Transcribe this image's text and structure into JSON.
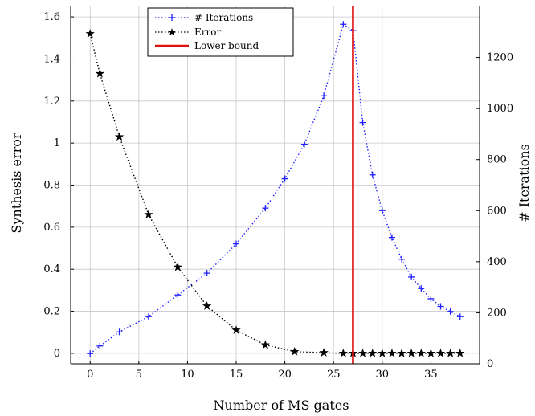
{
  "chart_data": {
    "type": "line",
    "xlabel": "Number of MS gates",
    "ylabel_left": "Synthesis error",
    "ylabel_right": "# Iterations",
    "xlim": [
      -2,
      40
    ],
    "ylim_left": [
      -0.05,
      1.65
    ],
    "ylim_right": [
      0,
      1400
    ],
    "xticks": [
      0,
      5,
      10,
      15,
      20,
      25,
      30,
      35
    ],
    "yticks_left": [
      0,
      0.2,
      0.4,
      0.6,
      0.8,
      1,
      1.2,
      1.4,
      1.6
    ],
    "yticks_left_labels": [
      "0",
      "0.2",
      "0.4",
      "0.6",
      "0.8",
      "1",
      "1.2",
      "1.4",
      "1.6"
    ],
    "yticks_right": [
      0,
      200,
      400,
      600,
      800,
      1000,
      1200
    ],
    "grid": true,
    "legend_position": "top-center",
    "series": [
      {
        "name": "# Iterations",
        "axis": "right",
        "color": "#1f1fff",
        "marker": "plus",
        "line": "dotted",
        "x": [
          0,
          1,
          3,
          6,
          9,
          12,
          15,
          18,
          20,
          22,
          24,
          26,
          27,
          28,
          29,
          30,
          31,
          32,
          33,
          34,
          35,
          36,
          37,
          38
        ],
        "y": [
          40,
          70,
          125,
          185,
          270,
          355,
          470,
          610,
          725,
          860,
          1050,
          1330,
          1305,
          945,
          740,
          600,
          495,
          410,
          340,
          295,
          255,
          225,
          205,
          185
        ]
      },
      {
        "name": "Error",
        "axis": "left",
        "color": "#000000",
        "marker": "star",
        "line": "dotted",
        "x": [
          0,
          1,
          3,
          6,
          9,
          12,
          15,
          18,
          21,
          24,
          26,
          27,
          28,
          29,
          30,
          31,
          32,
          33,
          34,
          35,
          36,
          37,
          38
        ],
        "y": [
          1.52,
          1.33,
          1.03,
          0.66,
          0.41,
          0.225,
          0.11,
          0.04,
          0.008,
          0.003,
          0,
          0,
          0,
          0,
          0,
          0,
          0,
          0,
          0,
          0,
          0,
          0,
          0
        ]
      }
    ],
    "vertical_lines": [
      {
        "name": "Lower bound",
        "x": 27,
        "color": "#e01010"
      }
    ]
  }
}
